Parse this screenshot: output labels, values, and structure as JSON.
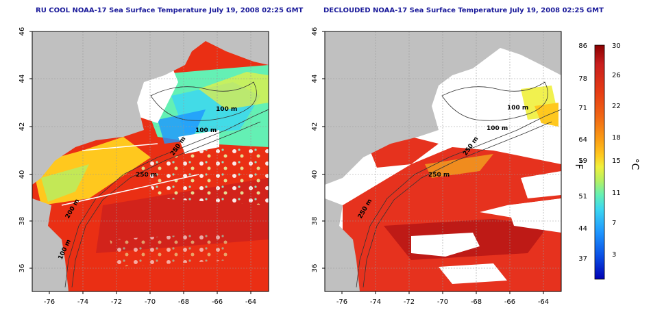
{
  "panels": [
    {
      "title": "RU COOL NOAA-17 Sea Surface Temperature July 19, 2008 02:25 GMT"
    },
    {
      "title": "DECLOUDED NOAA-17 Sea Surface Temperature July 19, 2008 02:25 GMT"
    }
  ],
  "axes": {
    "lon_ticks": [
      "-76",
      "-74",
      "-72",
      "-70",
      "-68",
      "-66",
      "-64"
    ],
    "lat_ticks": [
      "36",
      "38",
      "40",
      "42",
      "44",
      "46"
    ]
  },
  "bathymetry_labels": {
    "p1": [
      "100 m",
      "100 m",
      "250 m",
      "250 m",
      "200 m",
      "100 m"
    ],
    "p2": [
      "100 m",
      "100 m",
      "250 m",
      "250 m",
      "250 m"
    ]
  },
  "colorbar": {
    "fahrenheit_ticks": [
      "86",
      "78",
      "71",
      "64",
      "59",
      "51",
      "44",
      "37"
    ],
    "celsius_ticks": [
      "30",
      "26",
      "22",
      "18",
      "15",
      "11",
      "7",
      "3"
    ],
    "fahrenheit_unit": "°F",
    "celsius_unit": "°C",
    "colors": [
      "#8b0000",
      "#c81e1e",
      "#e63c14",
      "#f06414",
      "#fa9b14",
      "#ffc81e",
      "#f0f03c",
      "#b4f064",
      "#64f0b4",
      "#3cd7f0",
      "#1e96ff",
      "#0a50e6",
      "#0000b4"
    ]
  },
  "colors": {
    "land": "#c0c0c0",
    "cloud": "#ffffff",
    "title": "#1a1a9a"
  }
}
